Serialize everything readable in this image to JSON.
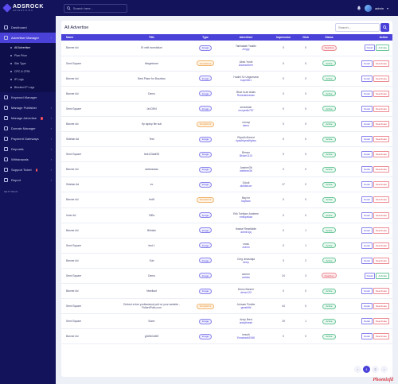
{
  "brand": {
    "name": "ADSROCK",
    "tagline": "ADVERTISING"
  },
  "topbar": {
    "search_placeholder": "Search here...",
    "username": "admin"
  },
  "sidebar": {
    "items": [
      {
        "label": "Dashboard",
        "icon": "dashboard-icon",
        "active": false,
        "has_caret": false
      },
      {
        "label": "Advertiser Manager",
        "icon": "users-icon",
        "active": true,
        "has_caret": true,
        "sub": [
          {
            "label": "All Advertiser",
            "active": true
          },
          {
            "label": "Plan Price"
          },
          {
            "label": "Site Type"
          },
          {
            "label": "CPC & CPM"
          },
          {
            "label": "IP Logs"
          },
          {
            "label": "Blocked IP Logs"
          }
        ]
      },
      {
        "label": "Keyword Manager",
        "icon": "key-icon",
        "active": false,
        "has_caret": false
      },
      {
        "label": "Manage Publisher",
        "icon": "publisher-icon",
        "active": false,
        "has_caret": true
      },
      {
        "label": "Manage Advertise",
        "icon": "advertise-icon",
        "active": false,
        "has_caret": true,
        "badge": "!"
      },
      {
        "label": "Domain Manager",
        "icon": "globe-icon",
        "active": false,
        "has_caret": true
      },
      {
        "label": "Payment Gateways",
        "icon": "card-icon",
        "active": false,
        "has_caret": true
      },
      {
        "label": "Deposits",
        "icon": "deposit-icon",
        "active": false,
        "has_caret": true
      },
      {
        "label": "Withdrawals",
        "icon": "withdraw-icon",
        "active": false,
        "has_caret": true
      },
      {
        "label": "Support Ticket",
        "icon": "ticket-icon",
        "active": false,
        "has_caret": true,
        "badge": "!"
      },
      {
        "label": "Report",
        "icon": "report-icon",
        "active": false,
        "has_caret": true
      }
    ],
    "settings_label": "SETTINGS"
  },
  "main": {
    "title": "All Advertise",
    "filter_placeholder": "Search...",
    "columns": [
      "Name",
      "Title",
      "Type",
      "Advertiser",
      "Impression",
      "Click",
      "Status",
      "Action"
    ],
    "rows": [
      {
        "name": "Banner Ad",
        "title": "Et velit incrediduni",
        "type": "Image",
        "adv_name": "Tamsakah Yaddin",
        "adv_user": "zrngry",
        "impression": "0",
        "click": "0",
        "status": "Deactive"
      },
      {
        "name": "Semi Square",
        "title": "thisgetmore",
        "type": "Script/Html",
        "adv_name": "Abdu Yusbi",
        "adv_user": "Adamohbrer",
        "impression": "0",
        "click": "0",
        "status": "Active"
      },
      {
        "name": "Banner Ad",
        "title": "Best Place for Buzzkiss",
        "type": "Image",
        "adv_name": "Hudini Xz Ungumana",
        "adv_user": "buymNb1",
        "impression": "0",
        "click": "0",
        "status": "Active"
      },
      {
        "name": "Banner Ad",
        "title": "Demo",
        "type": "Image",
        "adv_name": "Bhat Ia ae Asias",
        "adv_user": "Rshedddnshan",
        "impression": "0",
        "click": "0",
        "status": "Active"
      },
      {
        "name": "Semi Square",
        "title": "1e10394",
        "type": "Image",
        "adv_name": "seradmah",
        "adv_user": "mrcpedlu757",
        "impression": "0",
        "click": "0",
        "status": "Active"
      },
      {
        "name": "Banner Ad",
        "title": "Hp laptop file sub",
        "type": "Script/Html",
        "adv_name": "mmrqt",
        "adv_user": "demo",
        "impression": "0",
        "click": "0",
        "status": "Active"
      },
      {
        "name": "Sidebar Ad",
        "title": "Test",
        "type": "Image",
        "adv_name": "Riyadh Ahmed",
        "adv_user": "riyadhkyradfighvs",
        "impression": "0",
        "click": "0",
        "status": "Active"
      },
      {
        "name": "Semi Square",
        "title": "test123abf28",
        "type": "Image",
        "adv_name": "Bimwo",
        "adv_user": "Bklum1113",
        "impression": "0",
        "click": "0",
        "status": "Active"
      },
      {
        "name": "Banner Ad",
        "title": "dwdwsssss",
        "type": "Image",
        "adv_name": "Jwatree36",
        "adv_user": "webtree36",
        "impression": "0",
        "click": "0",
        "status": "Active"
      },
      {
        "name": "Sidebar Ad",
        "title": "ec",
        "type": "Image",
        "adv_name": "Gdudi",
        "adv_user": "akifdelcve",
        "impression": "17",
        "click": "0",
        "status": "Active"
      },
      {
        "name": "Banner Ad",
        "title": "fedff",
        "type": "Script/Html",
        "adv_name": "Bay ke",
        "adv_user": "bayisan",
        "impression": "0",
        "click": "0",
        "status": "Active"
      },
      {
        "name": "Inner Ad",
        "title": "23Bx",
        "type": "Image",
        "adv_name": "Erik Toefipov Andeem",
        "adv_user": "emlspedaa",
        "impression": "0",
        "click": "0",
        "status": "Active"
      },
      {
        "name": "Banner Ad",
        "title": "Bhbske",
        "type": "Image",
        "adv_name": "Ibasse Resellable",
        "adv_user": "admin1jq",
        "impression": "0",
        "click": "1",
        "status": "Active"
      },
      {
        "name": "Semi Square",
        "title": "test 1",
        "type": "Image",
        "adv_name": "cross",
        "adv_user": "zxzxm",
        "impression": "0",
        "click": "1",
        "status": "Active"
      },
      {
        "name": "Banner Ad",
        "title": "Sub",
        "type": "Image",
        "adv_name": "Cmg Jmasnaja",
        "adv_user": "deep",
        "impression": "3",
        "click": "2",
        "status": "Active"
      },
      {
        "name": "Semi Square",
        "title": "Demo",
        "type": "Image",
        "adv_name": "azmen",
        "adv_user": "radmin",
        "impression": "24",
        "click": "3",
        "status": "Deactive"
      },
      {
        "name": "Banner Ad",
        "title": "Nwelkad",
        "type": "Image",
        "adv_name": "Demo Banner",
        "adv_user": "demo123",
        "impression": "0",
        "click": "0",
        "status": "Active"
      },
      {
        "name": "Semi Square",
        "title": "Embed a free professional poll on your website - PollerdPolls.com",
        "type": "Script/Html",
        "adv_name": "Juhsam Pustbe",
        "adv_user": "greathfhl",
        "impression": "44",
        "click": "0",
        "status": "Active"
      },
      {
        "name": "Semi Square",
        "title": "Burm",
        "type": "Image",
        "adv_name": "Andy Bred",
        "adv_user": "andythresh",
        "impression": "19",
        "click": "1",
        "status": "Active"
      },
      {
        "name": "Banner Ad",
        "title": "g3e5b1b6f3",
        "type": "Image",
        "adv_name": "Imsulh",
        "adv_user": "Emaclaah1946",
        "impression": "0",
        "click": "0",
        "status": "Active"
      }
    ],
    "labels": {
      "detail": "Detail",
      "deactivate": "Deactivate",
      "activate": "Activate"
    },
    "pagination": {
      "prev": "‹",
      "pages": [
        "1",
        "2"
      ],
      "current": "1",
      "next": "›"
    }
  },
  "watermark": "Phoenixfd",
  "colors": {
    "sidebar": "#12135a",
    "accent": "#4a42d8",
    "active": "#1e9a5c",
    "danger": "#d8414f",
    "warning": "#e08a2a"
  }
}
